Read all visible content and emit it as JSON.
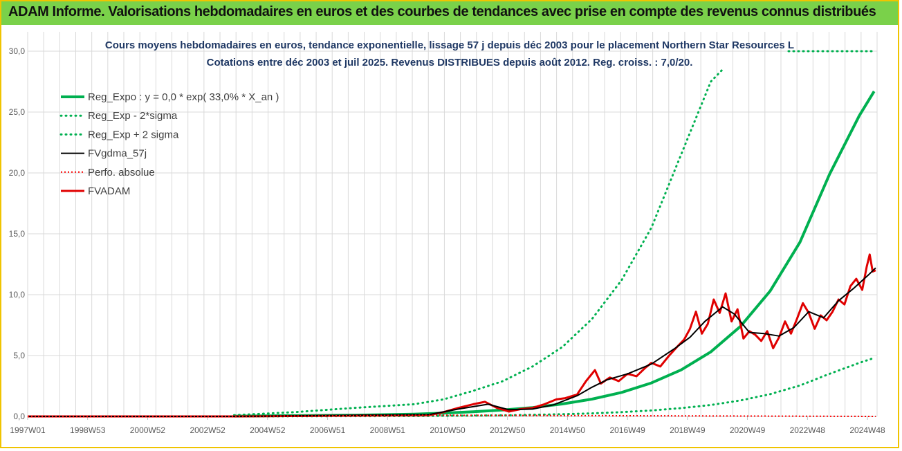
{
  "banner": {
    "title": "ADAM Informe. Valorisations hebdomadaires en euros et des courbes de tendances avec prise en compte des revenus connus distribués"
  },
  "chart_data": {
    "type": "line",
    "title_line1": "Cours moyens hebdomadaires en euros, tendance exponentielle, lissage 57 j depuis déc 2003 pour le placement Northern Star Resources L",
    "title_line2": "Cotations entre déc 2003 et juil 2025. Revenus DISTRIBUES depuis août 2012. Reg. croiss. : 7,0/20.",
    "xlabel": "",
    "ylabel": "",
    "ylim": [
      0,
      30
    ],
    "xlim": [
      1997.0,
      2025.6
    ],
    "grid": true,
    "legend_position": "top-left",
    "y_ticks": [
      "0,0",
      "5,0",
      "10,0",
      "15,0",
      "20,0",
      "25,0",
      "30,0"
    ],
    "x_tick_labels": [
      "1997W01",
      "1998W53",
      "2000W52",
      "2002W52",
      "2004W52",
      "2006W51",
      "2008W51",
      "2010W50",
      "2012W50",
      "2014W50",
      "2016W49",
      "2018W49",
      "2020W49",
      "2022W48",
      "2024W48"
    ],
    "colors": {
      "reg_expo": "#00b050",
      "sigma": "#00b050",
      "fvgdma": "#000000",
      "perfo": "#ff0000",
      "fvadam": "#e00000",
      "grid": "#d9d9d9"
    },
    "series": [
      {
        "name": "Reg_Expo : y = 0,0 * exp( 33,0% *  X_an )",
        "style": "solid",
        "x": [
          2003.95,
          2006,
          2008,
          2010,
          2011,
          2012,
          2013,
          2014,
          2015,
          2016,
          2017,
          2018,
          2019,
          2020,
          2021,
          2022,
          2023,
          2024,
          2025,
          2025.5
        ],
        "y": [
          0.02,
          0.06,
          0.1,
          0.18,
          0.27,
          0.38,
          0.52,
          0.73,
          1.02,
          1.42,
          1.97,
          2.75,
          3.82,
          5.3,
          7.4,
          10.3,
          14.3,
          19.9,
          24.7,
          26.7
        ]
      },
      {
        "name": "Reg_Exp - 2*sigma",
        "style": "dotted",
        "x": [
          2003.95,
          2006,
          2008,
          2010,
          2012,
          2013,
          2014,
          2015,
          2016,
          2017,
          2018,
          2019,
          2020,
          2021,
          2022,
          2023,
          2024,
          2025,
          2025.5
        ],
        "y": [
          0.0,
          0.01,
          0.02,
          0.03,
          0.07,
          0.09,
          0.13,
          0.18,
          0.25,
          0.35,
          0.49,
          0.68,
          0.94,
          1.31,
          1.83,
          2.54,
          3.5,
          4.4,
          4.8
        ]
      },
      {
        "name": "Reg_Exp + 2 sigma",
        "style": "dotted",
        "x": [
          2003.95,
          2006,
          2008,
          2010,
          2011,
          2012,
          2013,
          2014,
          2015,
          2016,
          2017,
          2018,
          2019,
          2020,
          2020.4
        ],
        "y": [
          0.1,
          0.35,
          0.7,
          1.0,
          1.4,
          2.1,
          2.9,
          4.1,
          5.7,
          8.0,
          11.2,
          15.5,
          21.5,
          27.5,
          28.5
        ]
      },
      {
        "name": "FVgdma_57j",
        "style": "solid",
        "x": [
          1997.0,
          2003.9,
          2010.5,
          2011.5,
          2012.5,
          2013.2,
          2014.0,
          2014.7,
          2015.5,
          2016.0,
          2016.5,
          2017.2,
          2018.0,
          2018.8,
          2019.3,
          2019.8,
          2020.4,
          2020.8,
          2021.3,
          2021.8,
          2022.3,
          2022.8,
          2023.3,
          2023.8,
          2024.3,
          2024.8,
          2025.3,
          2025.55
        ],
        "y": [
          0.0,
          0.0,
          0.15,
          0.6,
          1.0,
          0.55,
          0.6,
          0.95,
          1.7,
          2.4,
          3.0,
          3.5,
          4.3,
          5.6,
          6.5,
          7.8,
          9.0,
          8.4,
          6.9,
          6.8,
          6.6,
          7.3,
          8.6,
          8.1,
          9.5,
          10.5,
          11.6,
          12.2
        ]
      },
      {
        "name": "Perfo. absolue",
        "style": "dotted",
        "x": [
          1997.0,
          2003.9,
          2010.5,
          2025.55
        ],
        "y": [
          0.0,
          0.0,
          0.1,
          0.0
        ]
      },
      {
        "name": "FVADAM",
        "style": "solid",
        "x": [
          1997.0,
          2003.9,
          2010.5,
          2011.0,
          2011.5,
          2012.0,
          2012.4,
          2012.8,
          2013.2,
          2013.6,
          2014.0,
          2014.4,
          2014.8,
          2015.1,
          2015.5,
          2015.8,
          2016.1,
          2016.3,
          2016.6,
          2016.9,
          2017.2,
          2017.5,
          2017.8,
          2018.0,
          2018.3,
          2018.6,
          2018.9,
          2019.1,
          2019.3,
          2019.5,
          2019.7,
          2019.9,
          2020.1,
          2020.3,
          2020.5,
          2020.7,
          2020.9,
          2021.1,
          2021.3,
          2021.5,
          2021.7,
          2021.9,
          2022.1,
          2022.3,
          2022.5,
          2022.7,
          2022.9,
          2023.1,
          2023.3,
          2023.5,
          2023.7,
          2023.9,
          2024.1,
          2024.3,
          2024.5,
          2024.7,
          2024.9,
          2025.1,
          2025.25,
          2025.35,
          2025.45,
          2025.55
        ],
        "y": [
          0.0,
          0.0,
          0.1,
          0.35,
          0.7,
          1.0,
          1.2,
          0.7,
          0.4,
          0.6,
          0.7,
          1.0,
          1.4,
          1.5,
          1.8,
          2.9,
          3.8,
          2.7,
          3.2,
          2.9,
          3.5,
          3.3,
          4.0,
          4.4,
          4.1,
          5.0,
          5.8,
          6.3,
          7.2,
          8.6,
          6.8,
          7.6,
          9.6,
          8.5,
          10.1,
          7.8,
          8.8,
          6.4,
          7.0,
          6.7,
          6.2,
          7.0,
          5.6,
          6.5,
          7.8,
          6.8,
          8.0,
          9.3,
          8.5,
          7.2,
          8.3,
          7.9,
          8.6,
          9.6,
          9.2,
          10.7,
          11.3,
          10.4,
          12.3,
          13.3,
          11.9,
          12.0
        ]
      }
    ]
  }
}
